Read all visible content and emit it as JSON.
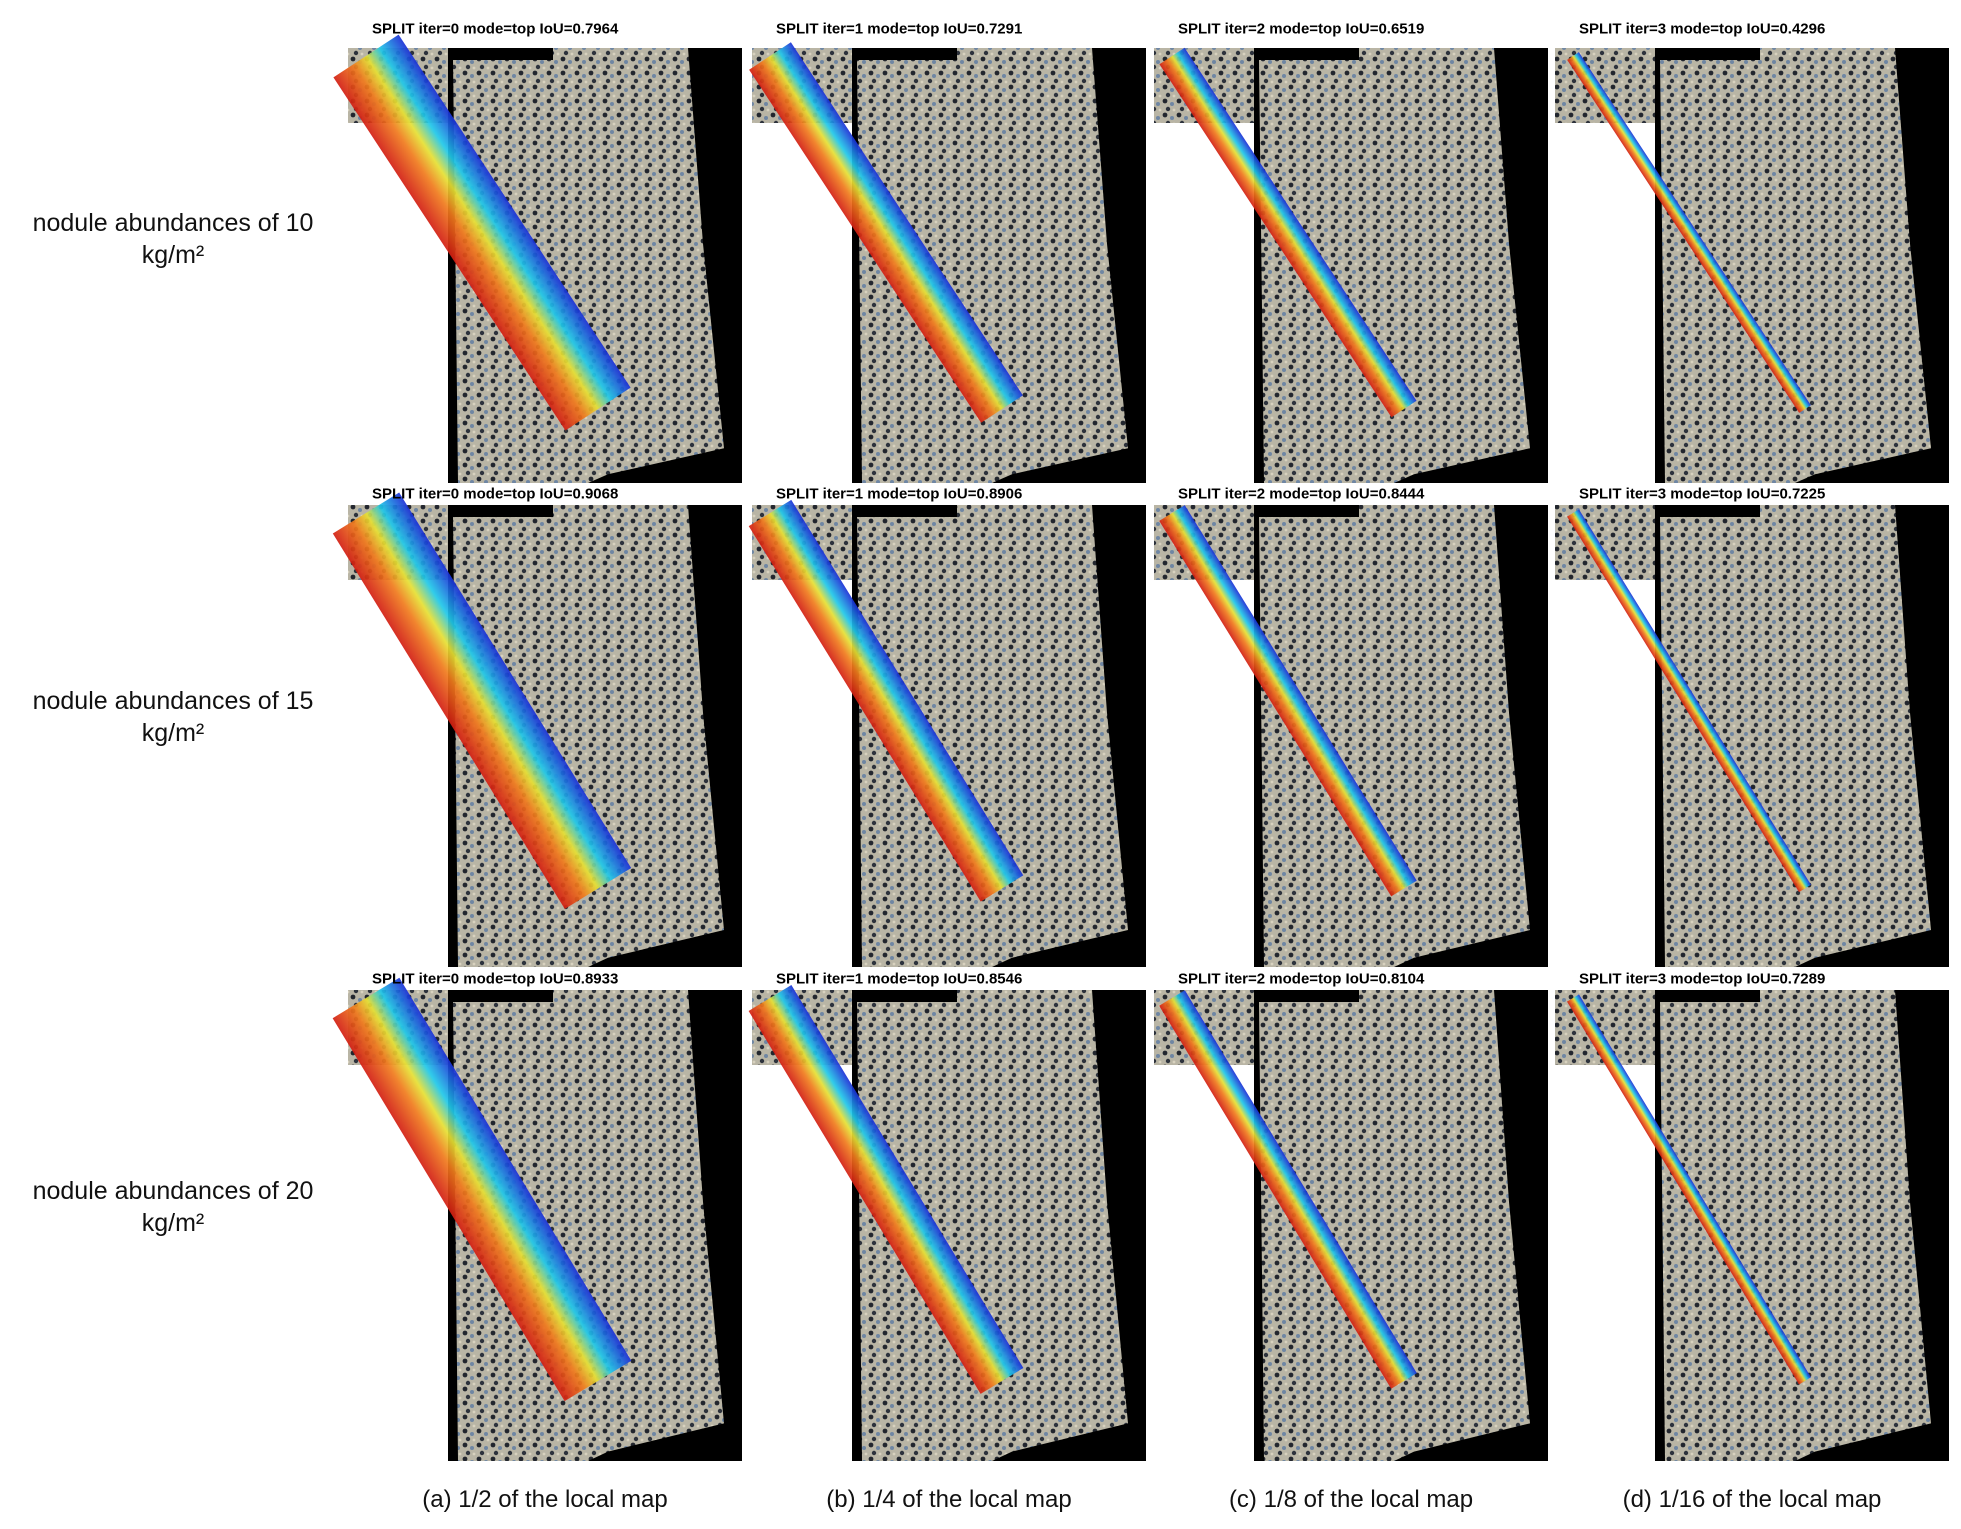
{
  "row_labels": [
    "nodule abundances of 10 kg/m²",
    "nodule abundances of 15 kg/m²",
    "nodule abundances of 20 kg/m²"
  ],
  "panel_titles": [
    [
      "SPLIT iter=0 mode=top IoU=0.7964",
      "SPLIT iter=1 mode=top IoU=0.7291",
      "SPLIT iter=2 mode=top IoU=0.6519",
      "SPLIT iter=3 mode=top IoU=0.4296"
    ],
    [
      "SPLIT iter=0 mode=top IoU=0.9068",
      "SPLIT iter=1 mode=top IoU=0.8906",
      "SPLIT iter=2 mode=top IoU=0.8444",
      "SPLIT iter=3 mode=top IoU=0.7225"
    ],
    [
      "SPLIT iter=0 mode=top IoU=0.8933",
      "SPLIT iter=1 mode=top IoU=0.8546",
      "SPLIT iter=2 mode=top IoU=0.8104",
      "SPLIT iter=3 mode=top IoU=0.7289"
    ]
  ],
  "column_captions": [
    "(a) 1/2 of the local map",
    "(b) 1/4 of the local map",
    "(c) 1/8 of the local map",
    "(d) 1/16 of the local map"
  ]
}
